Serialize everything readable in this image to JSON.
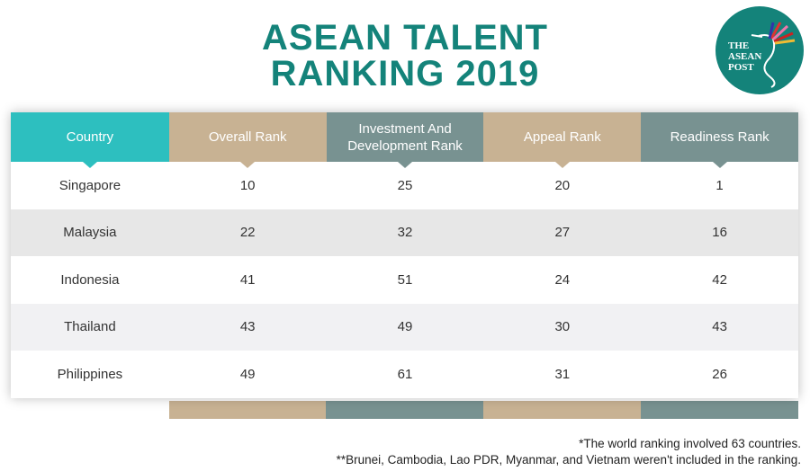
{
  "title_line1": "ASEAN TALENT",
  "title_line2": "RANKING 2019",
  "logo": {
    "text": "THE ASEAN POST"
  },
  "colors": {
    "title": "#14837a",
    "country": "#2dbfbf",
    "tan": "#c8b293",
    "slate": "#789291"
  },
  "headers": [
    "Country",
    "Overall Rank",
    "Investment And Development Rank",
    "Appeal Rank",
    "Readiness Rank"
  ],
  "rows": [
    [
      "Singapore",
      "10",
      "25",
      "20",
      "1"
    ],
    [
      "Malaysia",
      "22",
      "32",
      "27",
      "16"
    ],
    [
      "Indonesia",
      "41",
      "51",
      "24",
      "42"
    ],
    [
      "Thailand",
      "43",
      "49",
      "30",
      "43"
    ],
    [
      "Philippines",
      "49",
      "61",
      "31",
      "26"
    ]
  ],
  "notes": [
    "*The world ranking involved 63 countries.",
    "**Brunei, Cambodia, Lao PDR, Myanmar, and Vietnam weren't included in the ranking."
  ]
}
